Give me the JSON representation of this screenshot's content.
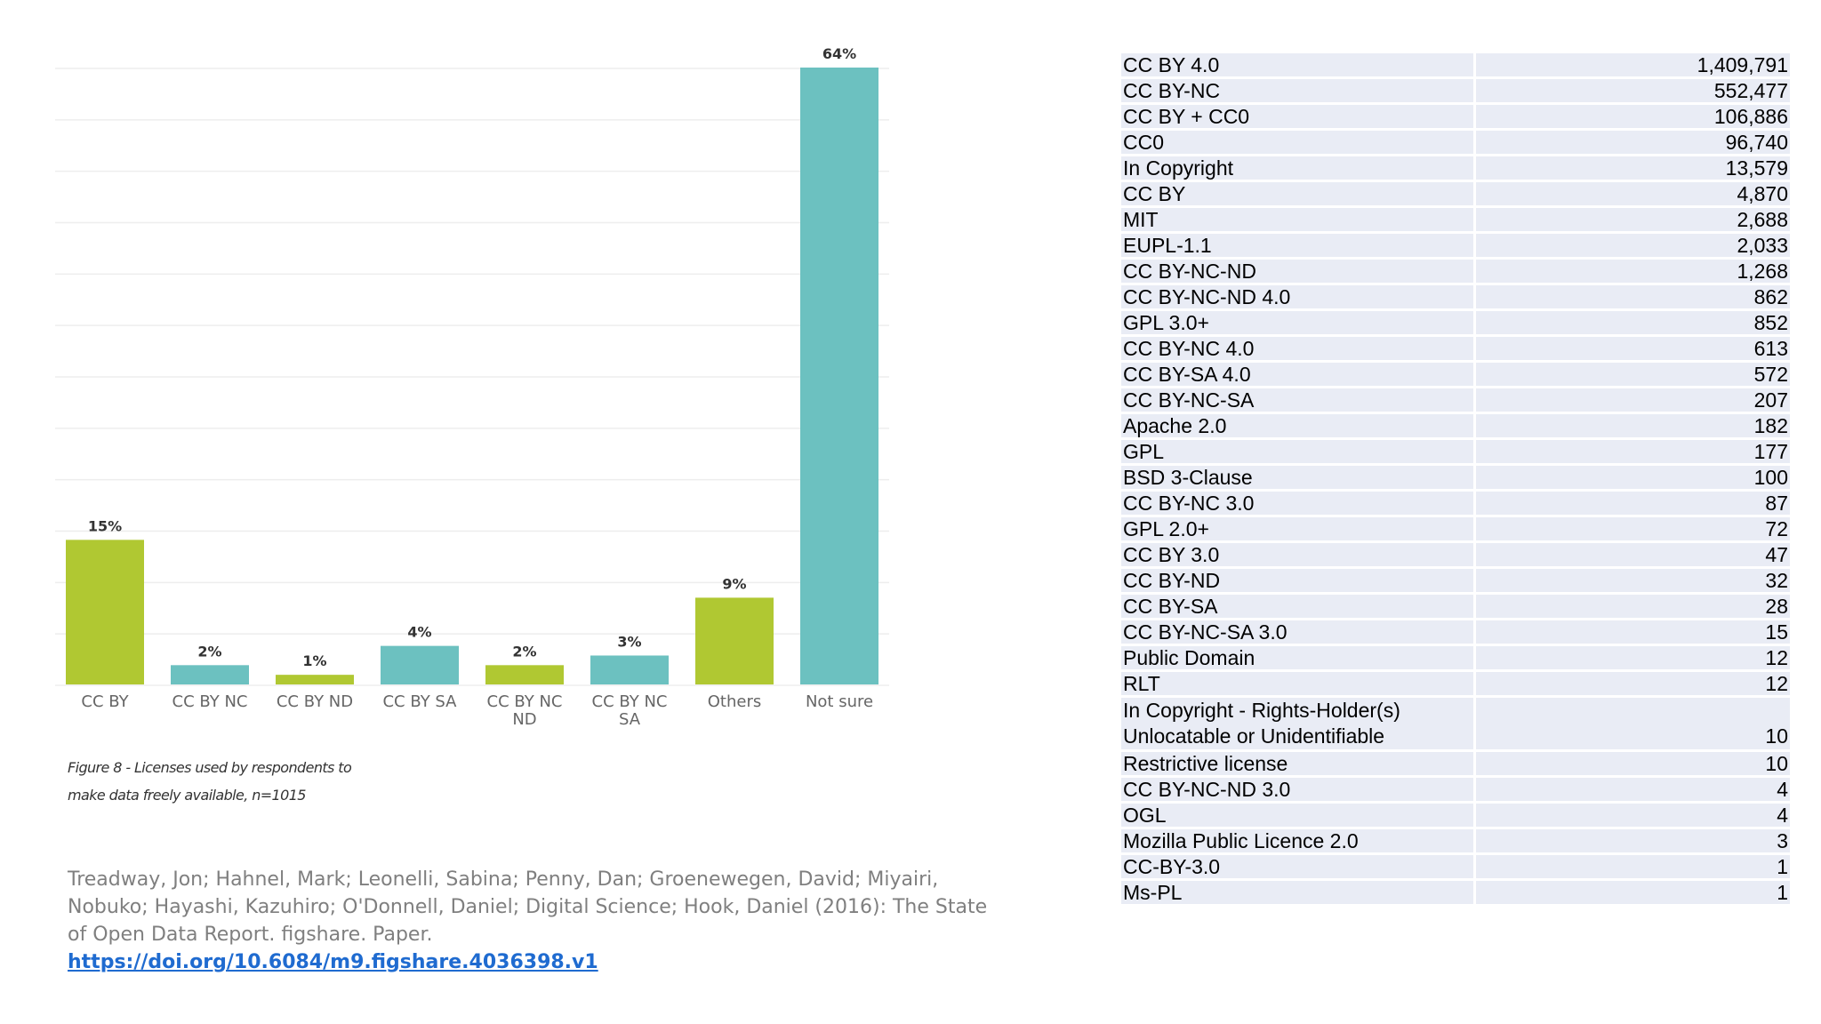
{
  "chart_data": {
    "type": "bar",
    "categories": [
      "CC BY",
      "CC BY NC",
      "CC BY ND",
      "CC BY SA",
      "CC BY NC ND",
      "CC BY NC SA",
      "Others",
      "Not sure"
    ],
    "category_lines": [
      [
        "CC BY"
      ],
      [
        "CC BY NC"
      ],
      [
        "CC BY ND"
      ],
      [
        "CC BY SA"
      ],
      [
        "CC BY NC",
        "ND"
      ],
      [
        "CC BY NC",
        "SA"
      ],
      [
        "Others"
      ],
      [
        "Not sure"
      ]
    ],
    "values": [
      15,
      2,
      1,
      4,
      2,
      3,
      9,
      64
    ],
    "value_labels": [
      "15%",
      "2%",
      "1%",
      "4%",
      "2%",
      "3%",
      "9%",
      "64%"
    ],
    "bar_colors": [
      "#b0c832",
      "#6cc1c0",
      "#b0c832",
      "#6cc1c0",
      "#b0c832",
      "#6cc1c0",
      "#b0c832",
      "#6cc1c0"
    ],
    "ylim": [
      0,
      64
    ],
    "grid": true,
    "title": "",
    "xlabel": "",
    "ylabel": ""
  },
  "caption": {
    "line1": "Figure 8 - Licenses used by respondents to",
    "line2": "make data freely available,  n=1015"
  },
  "citation": {
    "text": "Treadway, Jon; Hahnel, Mark; Leonelli, Sabina; Penny, Dan; Groenewegen, David; Miyairi, Nobuko; Hayashi, Kazuhiro; O'Donnell, Daniel; Digital Science; Hook, Daniel (2016): The State of Open Data Report. figshare. Paper.",
    "link": "https://doi.org/10.6084/m9.figshare.4036398.v1"
  },
  "license_table": [
    {
      "name": "CC BY 4.0",
      "count": "1,409,791"
    },
    {
      "name": "CC BY-NC",
      "count": "552,477"
    },
    {
      "name": "CC BY + CC0",
      "count": "106,886"
    },
    {
      "name": "CC0",
      "count": "96,740"
    },
    {
      "name": "In Copyright",
      "count": "13,579"
    },
    {
      "name": "CC BY",
      "count": "4,870"
    },
    {
      "name": "MIT",
      "count": "2,688"
    },
    {
      "name": "EUPL-1.1",
      "count": "2,033"
    },
    {
      "name": "CC BY-NC-ND",
      "count": "1,268"
    },
    {
      "name": "CC BY-NC-ND 4.0",
      "count": "862"
    },
    {
      "name": "GPL 3.0+",
      "count": "852"
    },
    {
      "name": "CC BY-NC 4.0",
      "count": "613"
    },
    {
      "name": "CC BY-SA 4.0",
      "count": "572"
    },
    {
      "name": "CC BY-NC-SA",
      "count": "207"
    },
    {
      "name": "Apache 2.0",
      "count": "182"
    },
    {
      "name": "GPL",
      "count": "177"
    },
    {
      "name": "BSD 3-Clause",
      "count": "100"
    },
    {
      "name": "CC BY-NC 3.0",
      "count": "87"
    },
    {
      "name": "GPL 2.0+",
      "count": "72"
    },
    {
      "name": "CC BY 3.0",
      "count": "47"
    },
    {
      "name": "CC BY-ND",
      "count": "32"
    },
    {
      "name": "CC BY-SA",
      "count": "28"
    },
    {
      "name": "CC BY-NC-SA 3.0",
      "count": "15"
    },
    {
      "name": "Public Domain",
      "count": "12"
    },
    {
      "name": "RLT",
      "count": "12"
    },
    {
      "name": "In Copyright - Rights-Holder(s) Unlocatable or Unidentifiable",
      "name_lines": [
        "In Copyright - Rights-Holder(s)",
        "Unlocatable or Unidentifiable"
      ],
      "count": "10"
    },
    {
      "name": "Restrictive license",
      "count": "10"
    },
    {
      "name": "CC BY-NC-ND 3.0",
      "count": "4"
    },
    {
      "name": "OGL",
      "count": "4"
    },
    {
      "name": "Mozilla Public Licence 2.0",
      "count": "3"
    },
    {
      "name": "CC-BY-3.0",
      "count": "1"
    },
    {
      "name": "Ms-PL",
      "count": "1"
    }
  ]
}
